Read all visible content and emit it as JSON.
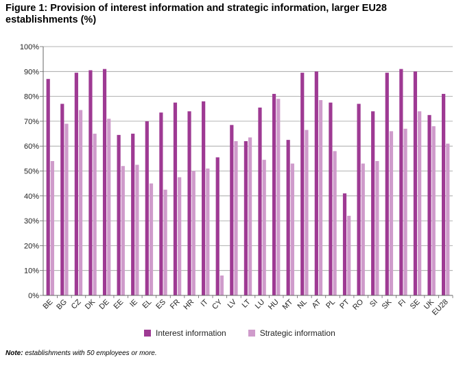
{
  "title": "Figure 1: Provision of interest information and strategic information, larger EU28 establishments (%)",
  "note": {
    "label": "Note:",
    "text": " establishments with 50 employees or more."
  },
  "colors": {
    "interest": "#9e3a93",
    "strategic": "#cf9bcb",
    "grid": "#9a9a9a",
    "axis": "#666666"
  },
  "chart_data": {
    "type": "bar",
    "categories": [
      "BE",
      "BG",
      "CZ",
      "DK",
      "DE",
      "EE",
      "IE",
      "EL",
      "ES",
      "FR",
      "HR",
      "IT",
      "CY",
      "LV",
      "LT",
      "LU",
      "HU",
      "MT",
      "NL",
      "AT",
      "PL",
      "PT",
      "RO",
      "SI",
      "SK",
      "FI",
      "SE",
      "UK",
      "EU28"
    ],
    "series": [
      {
        "name": "Interest information",
        "values": [
          87,
          77,
          89.5,
          90.5,
          91,
          64.5,
          65,
          70,
          73.5,
          77.5,
          74,
          78,
          55.5,
          68.5,
          62,
          75.5,
          81,
          62.5,
          89.5,
          90,
          77.5,
          41,
          77,
          74,
          89.5,
          91,
          90,
          72.5,
          81
        ]
      },
      {
        "name": "Strategic information",
        "values": [
          54,
          69,
          74.5,
          65,
          71,
          52,
          52.5,
          45,
          42.5,
          47.5,
          50,
          51,
          8,
          62,
          63.5,
          54.5,
          79,
          53,
          66.5,
          78.5,
          58,
          32,
          53,
          54,
          66,
          67,
          74,
          68,
          61
        ]
      }
    ],
    "ylim": [
      0,
      100
    ],
    "yticks": [
      "0%",
      "10%",
      "20%",
      "30%",
      "40%",
      "50%",
      "60%",
      "70%",
      "80%",
      "90%",
      "100%"
    ],
    "grid": true,
    "legend": "bottom"
  }
}
